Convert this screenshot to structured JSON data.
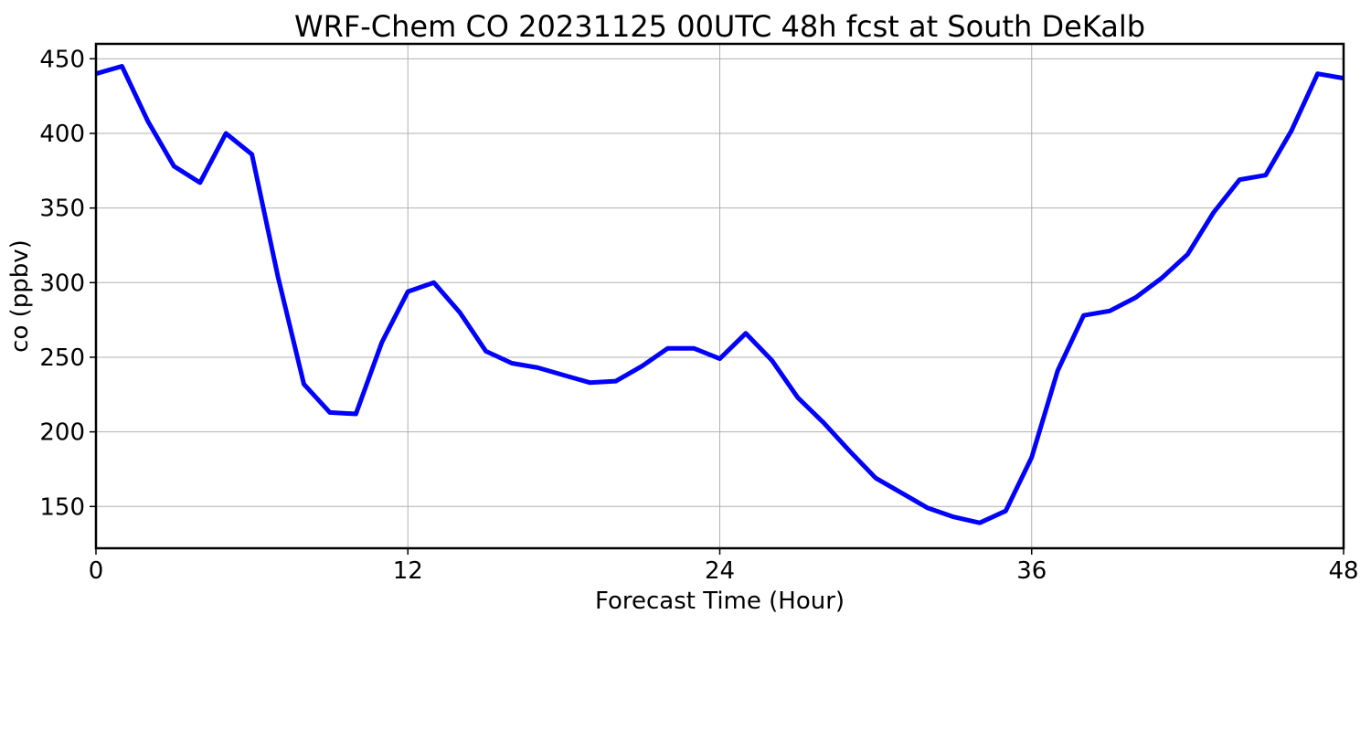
{
  "chart_data": {
    "type": "line",
    "title": "WRF-Chem CO  20231125 00UTC 48h fcst at South DeKalb",
    "xlabel": "Forecast Time (Hour)",
    "ylabel": "co  (ppbv)",
    "xlim": [
      0,
      48
    ],
    "ylim": [
      122,
      460
    ],
    "xticks": [
      0,
      12,
      24,
      36,
      48
    ],
    "yticks": [
      150,
      200,
      250,
      300,
      350,
      400,
      450
    ],
    "grid": true,
    "line_color": "#0000ff",
    "series": [
      {
        "x": [
          0,
          1,
          2,
          3,
          4,
          5,
          6,
          7,
          8,
          9,
          10,
          11,
          12,
          13,
          14,
          15,
          16,
          17,
          18,
          19,
          20,
          21,
          22,
          23,
          24,
          25,
          26,
          27,
          28,
          29,
          30,
          31,
          32,
          33,
          34,
          35,
          36,
          37,
          38,
          39,
          40,
          41,
          42,
          43,
          44,
          45,
          46,
          47,
          48
        ],
        "values": [
          440,
          445,
          408,
          378,
          367,
          400,
          386,
          304,
          232,
          213,
          212,
          260,
          294,
          300,
          280,
          254,
          246,
          243,
          238,
          233,
          234,
          244,
          256,
          256,
          249,
          266,
          248,
          223,
          206,
          187,
          169,
          159,
          149,
          143,
          139,
          147,
          183,
          241,
          278,
          281,
          290,
          303,
          319,
          347,
          369,
          372,
          402,
          440,
          437
        ]
      }
    ]
  }
}
